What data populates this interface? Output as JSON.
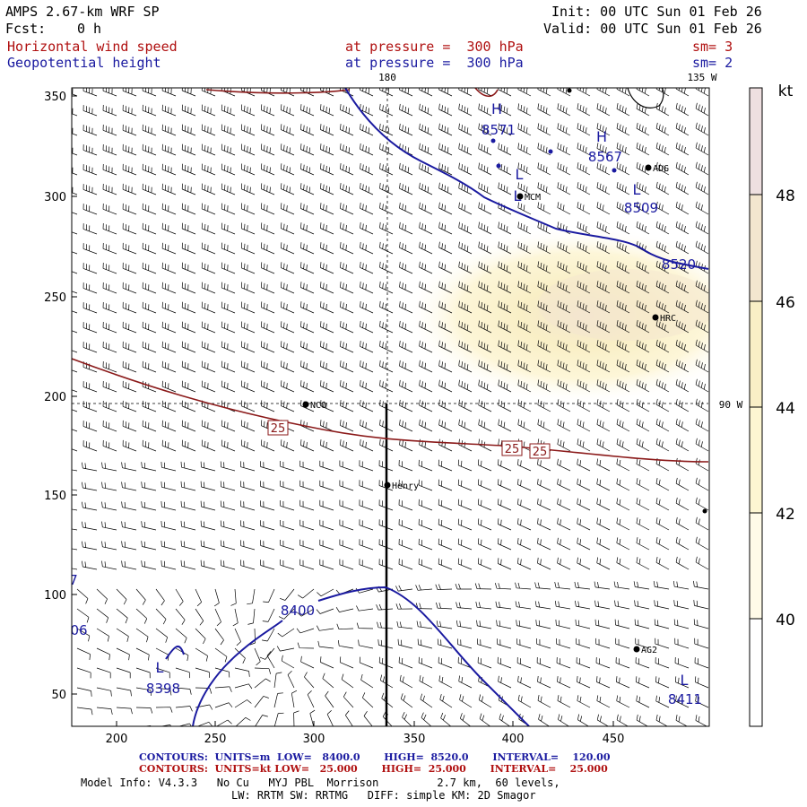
{
  "header": {
    "model": "AMPS 2.67-km WRF SP",
    "fcst_label": "Fcst:",
    "fcst_value": "0 h",
    "init": "Init: 00 UTC Sun 01 Feb 26",
    "valid": "Valid: 00 UTC Sun 01 Feb 26",
    "field1_name": "Horizontal wind speed",
    "field1_level": "at pressure =  300 hPa",
    "field1_sm": "sm= 3",
    "field2_name": "Geopotential height",
    "field2_level": "at pressure =  300 hPa",
    "field2_sm": "sm= 2"
  },
  "colors": {
    "height_contour": "#1a1aa0",
    "speed_contour": "#8b1a1a",
    "barb": "#000000",
    "shade_40": "#fffbe8",
    "shade_42": "#fdf6d2",
    "shade_44": "#f9efc6",
    "shade_46": "#f3e6cf",
    "shade_48": "#eedfe0"
  },
  "map": {
    "x_ticks": [
      "200",
      "250",
      "300",
      "350",
      "400",
      "450"
    ],
    "y_ticks": [
      "350",
      "300",
      "250",
      "200",
      "150",
      "100",
      "50"
    ],
    "meridian_labels": [
      "180",
      "135 W",
      "90 W"
    ],
    "stations": [
      "ADG",
      "MCM",
      "HRC",
      "NCO",
      "Henry",
      "AG2"
    ],
    "height_labels": [
      "8571",
      "8567",
      "8509",
      "8520",
      "8400",
      "8398",
      "8411",
      "06",
      "7"
    ],
    "pressure_centers": [
      "H",
      "H",
      "L",
      "L",
      "L",
      "L",
      "L"
    ],
    "speed_labels": [
      "25",
      "25",
      "25"
    ]
  },
  "colorbar": {
    "unit": "kt",
    "ticks": [
      "48",
      "46",
      "44",
      "42",
      "40"
    ]
  },
  "footer": {
    "contours1": "CONTOURS:  UNITS=m  LOW=   8400.0       HIGH=  8520.0       INTERVAL=    120.00",
    "contours2": "CONTOURS:  UNITS=kt LOW=   25.000       HIGH=  25.000       INTERVAL=    25.000",
    "model_info": "Model Info: V4.3.3   No Cu   MYJ PBL  Morrison         2.7 km,  60 levels,",
    "physics": "LW: RRTM SW: RRTMG   DIFF: simple KM: 2D Smagor"
  }
}
